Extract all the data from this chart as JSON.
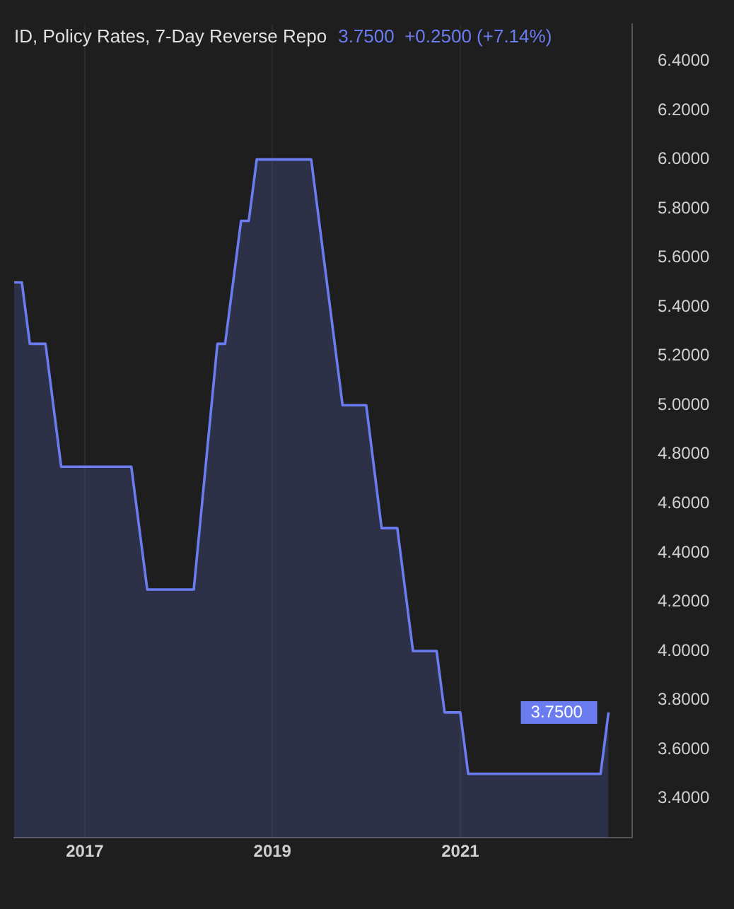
{
  "chart_data": {
    "type": "area",
    "title": "ID, Policy Rates, 7-Day Reverse Repo",
    "subtitle": "3.7500  +0.2500 (+7.14%)",
    "x": [
      "2016-04",
      "2016-05",
      "2016-06",
      "2016-08",
      "2016-10",
      "2017-07",
      "2017-09",
      "2018-03",
      "2018-06",
      "2018-07",
      "2018-09",
      "2018-10",
      "2018-11",
      "2019-06",
      "2019-10",
      "2020-01",
      "2020-03",
      "2020-05",
      "2020-07",
      "2020-10",
      "2020-11",
      "2021-01",
      "2021-02",
      "2022-07",
      "2022-08"
    ],
    "series": [
      {
        "color": "#6b7cf0",
        "values": [
          5.5,
          5.5,
          5.25,
          5.25,
          4.75,
          4.75,
          4.25,
          4.25,
          5.25,
          5.25,
          5.75,
          5.75,
          6.0,
          6.0,
          5.0,
          5.0,
          4.5,
          4.5,
          4.0,
          4.0,
          3.75,
          3.75,
          3.5,
          3.5,
          3.75
        ]
      }
    ],
    "annotations": [
      {
        "text": "3.7500",
        "x": "2022-08",
        "y": 3.75
      }
    ],
    "xlim": [
      "2016-04",
      "2022-11"
    ],
    "xticks": [
      {
        "value": "2017",
        "label": "2017"
      },
      {
        "value": "2019",
        "label": "2019"
      },
      {
        "value": "2021",
        "label": "2021"
      }
    ],
    "ylim": [
      3.24,
      6.55
    ],
    "yticks": [
      {
        "value": 3.4,
        "label": "3.4000"
      },
      {
        "value": 3.6,
        "label": "3.6000"
      },
      {
        "value": 3.8,
        "label": "3.8000"
      },
      {
        "value": 4.0,
        "label": "4.0000"
      },
      {
        "value": 4.2,
        "label": "4.2000"
      },
      {
        "value": 4.4,
        "label": "4.4000"
      },
      {
        "value": 4.6,
        "label": "4.6000"
      },
      {
        "value": 4.8,
        "label": "4.8000"
      },
      {
        "value": 5.0,
        "label": "5.0000"
      },
      {
        "value": 5.2,
        "label": "5.2000"
      },
      {
        "value": 5.4,
        "label": "5.4000"
      },
      {
        "value": 5.6,
        "label": "5.6000"
      },
      {
        "value": 5.8,
        "label": "5.8000"
      },
      {
        "value": 6.0,
        "label": "6.0000"
      },
      {
        "value": 6.2,
        "label": "6.2000"
      },
      {
        "value": 6.4,
        "label": "6.4000"
      }
    ],
    "grid": "x",
    "legend": false
  }
}
